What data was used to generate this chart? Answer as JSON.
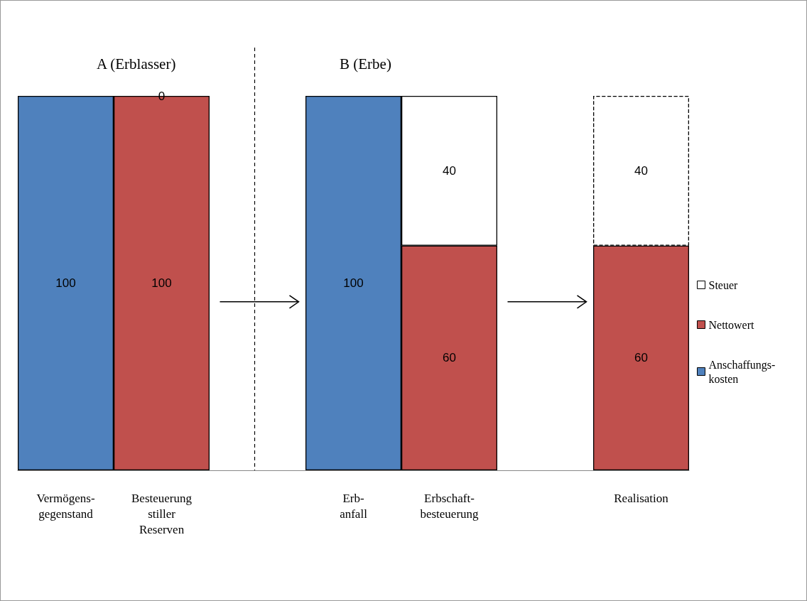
{
  "chart_data": {
    "type": "bar",
    "stacked": true,
    "data_labels": true,
    "ylim": [
      0,
      100
    ],
    "tick_labels": "x",
    "legend": "right",
    "categories": [
      "Vermögens-\ngegenstand",
      "Besteuerung\nstiller\nReserven",
      null,
      "Erb-\nanfall",
      "Erbschaft-\nbesteuerung",
      null,
      "Realisation"
    ],
    "series": [
      {
        "name": "Anschaffungs-\nkosten",
        "color": "#4f81bd",
        "line_style": "solid",
        "values": [
          100,
          null,
          null,
          100,
          null,
          null,
          null
        ]
      },
      {
        "name": "Nettowert",
        "color": "#c0504d",
        "line_style": "solid",
        "values": [
          null,
          100,
          null,
          null,
          60,
          null,
          60
        ]
      },
      {
        "name": "Steuer",
        "color": "#ffffff",
        "line_style": "solid",
        "values": [
          null,
          0,
          null,
          null,
          40,
          null,
          null
        ]
      },
      {
        "color": "#ffffff",
        "line_style": "dashed",
        "values": [
          null,
          null,
          null,
          null,
          null,
          null,
          40
        ]
      }
    ],
    "annotations": [
      "A (Erblasser)",
      "B (Erbe)"
    ]
  }
}
